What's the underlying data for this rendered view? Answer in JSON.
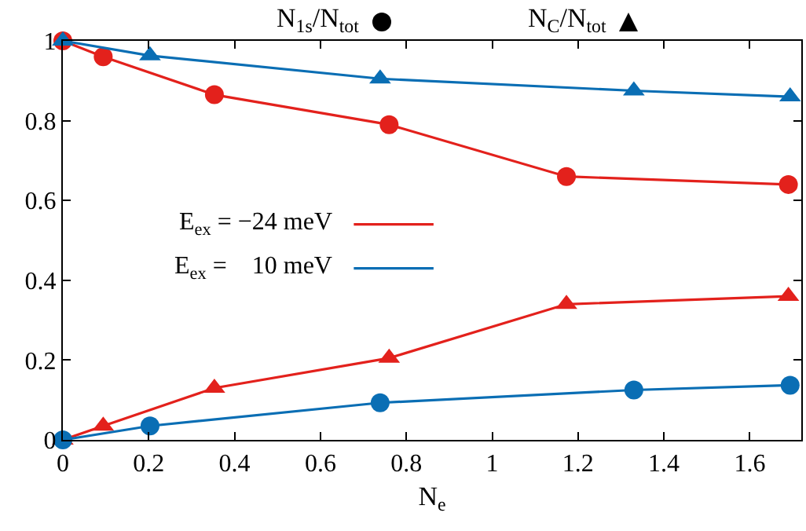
{
  "chart_data": {
    "type": "line",
    "xlabel": "N$_{e}$",
    "xlim": [
      0,
      1.72
    ],
    "xticks": [
      0,
      0.2,
      0.4,
      0.6,
      0.8,
      1,
      1.2,
      1.4,
      1.6
    ],
    "ylim": [
      0,
      1
    ],
    "yticks": [
      0,
      0.2,
      0.4,
      0.6,
      0.8,
      1
    ],
    "grid": false,
    "legend": "center",
    "line_style": "solid",
    "series": [
      {
        "name": "E$_{ex}$ = −24 meV",
        "color": "#e3211c",
        "marker": "circle",
        "x": [
          0,
          0.094,
          0.353,
          0.76,
          1.173,
          1.69
        ],
        "values": [
          1,
          0.96,
          0.865,
          0.79,
          0.66,
          0.64
        ]
      },
      {
        "color": "#e3211c",
        "marker": "triangle",
        "x": [
          0,
          0.094,
          0.353,
          0.76,
          1.173,
          1.69
        ],
        "values": [
          0,
          0.035,
          0.13,
          0.205,
          0.34,
          0.36
        ]
      },
      {
        "name": "E$_{ex}$ =    10 meV",
        "color": "#0a6eb4",
        "marker": "circle",
        "x": [
          0,
          0.203,
          0.739,
          1.33,
          1.694
        ],
        "values": [
          0,
          0.035,
          0.093,
          0.125,
          0.137
        ]
      },
      {
        "color": "#0a6eb4",
        "marker": "triangle",
        "x": [
          0,
          0.203,
          0.739,
          1.33,
          1.694
        ],
        "values": [
          1,
          0.963,
          0.905,
          0.875,
          0.86
        ]
      }
    ],
    "annotations": [
      "N$_{1s}$/N$_{tot}$",
      "N$_{C}$/N$_{tot}$"
    ]
  }
}
